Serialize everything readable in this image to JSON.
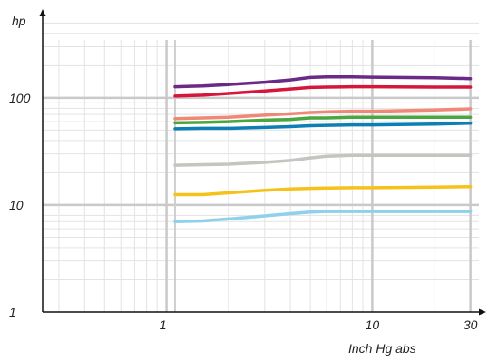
{
  "chart_data": {
    "type": "line",
    "ylabel": "hp",
    "xlabel": "Inch Hg abs",
    "xscale": "log",
    "yscale": "log",
    "xlim": [
      0.25,
      33
    ],
    "ylim": [
      1,
      600
    ],
    "x_ticks": [
      {
        "value": 1,
        "label": "1"
      },
      {
        "value": 10,
        "label": "10"
      },
      {
        "value": 30,
        "label": "30"
      }
    ],
    "y_ticks": [
      {
        "value": 1,
        "label": "1"
      },
      {
        "value": 10,
        "label": "10"
      },
      {
        "value": 100,
        "label": "100"
      }
    ],
    "grid": true,
    "legend": "none",
    "series": [
      {
        "color": "#6b2a86",
        "x": [
          1.1,
          1.5,
          2,
          3,
          4,
          5,
          6,
          8,
          10,
          20,
          30
        ],
        "y": [
          127,
          129,
          133,
          140,
          147,
          155,
          157,
          157,
          156,
          154,
          151
        ]
      },
      {
        "color": "#d6173b",
        "x": [
          1.1,
          1.5,
          2,
          3,
          4,
          5,
          6,
          8,
          10,
          20,
          30
        ],
        "y": [
          104,
          106,
          110,
          116,
          121,
          125,
          126,
          127,
          127,
          126,
          126
        ]
      },
      {
        "color": "#f08878",
        "x": [
          1.1,
          1.5,
          2,
          3,
          4,
          5,
          6,
          8,
          10,
          20,
          30
        ],
        "y": [
          64,
          65,
          66,
          69,
          71,
          73,
          74,
          75,
          75,
          77,
          79
        ]
      },
      {
        "color": "#4aa63f",
        "x": [
          1.1,
          1.5,
          2,
          3,
          4,
          5,
          6,
          8,
          10,
          20,
          30
        ],
        "y": [
          58.5,
          59,
          60,
          62,
          63,
          65,
          65,
          66,
          66,
          66,
          66
        ]
      },
      {
        "color": "#0e7fb4",
        "x": [
          1.1,
          1.5,
          2,
          3,
          4,
          5,
          6,
          8,
          10,
          20,
          30
        ],
        "y": [
          51.5,
          52,
          52,
          53,
          54,
          55,
          55.5,
          56,
          56,
          57,
          58
        ]
      },
      {
        "color": "#c6c4bf",
        "x": [
          1.1,
          1.5,
          2,
          3,
          4,
          5,
          6,
          8,
          10,
          20,
          30
        ],
        "y": [
          23.5,
          23.8,
          24,
          25,
          26,
          27.5,
          28.5,
          29,
          29,
          29,
          29
        ]
      },
      {
        "color": "#f6c21a",
        "x": [
          1.1,
          1.5,
          2,
          3,
          4,
          5,
          6,
          8,
          10,
          20,
          30
        ],
        "y": [
          12.5,
          12.5,
          13,
          13.7,
          14.1,
          14.3,
          14.4,
          14.5,
          14.5,
          14.7,
          14.8
        ]
      },
      {
        "color": "#8fd0ec",
        "x": [
          1.1,
          1.5,
          2,
          3,
          4,
          5,
          6,
          8,
          10,
          20,
          30
        ],
        "y": [
          7.0,
          7.1,
          7.4,
          7.9,
          8.3,
          8.6,
          8.7,
          8.7,
          8.7,
          8.7,
          8.7
        ]
      }
    ]
  }
}
